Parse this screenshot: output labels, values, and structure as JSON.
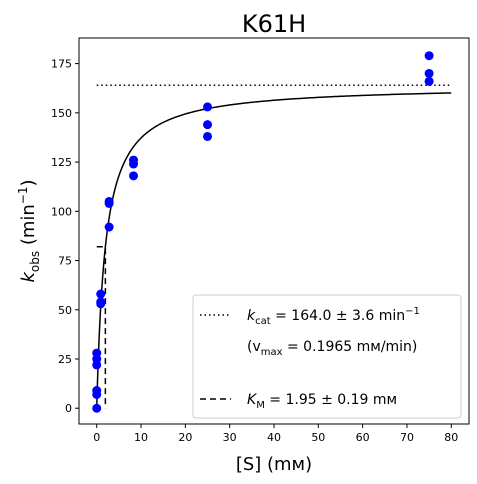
{
  "chart_data": {
    "type": "scatter",
    "title": "K61H",
    "xlabel": "[S] (mм)",
    "ylabel": "k_obs (min⁻¹)",
    "xlim": [
      -4,
      84
    ],
    "ylim": [
      -8,
      188
    ],
    "x_ticks": [
      0,
      10,
      20,
      30,
      40,
      50,
      60,
      70,
      80
    ],
    "y_ticks": [
      0,
      25,
      50,
      75,
      100,
      125,
      150,
      175
    ],
    "grid": false,
    "legend_position": "bottom-right",
    "marker_color": "#0000ff",
    "line_color": "#000000",
    "points": [
      {
        "x": 0,
        "y": 0
      },
      {
        "x": 0,
        "y": 7
      },
      {
        "x": 0,
        "y": 9
      },
      {
        "x": 0,
        "y": 22
      },
      {
        "x": 0,
        "y": 25
      },
      {
        "x": 0,
        "y": 28
      },
      {
        "x": 0.9,
        "y": 53
      },
      {
        "x": 0.9,
        "y": 54
      },
      {
        "x": 0.9,
        "y": 58
      },
      {
        "x": 2.8,
        "y": 92
      },
      {
        "x": 2.8,
        "y": 104
      },
      {
        "x": 2.8,
        "y": 105
      },
      {
        "x": 8.3,
        "y": 118
      },
      {
        "x": 8.3,
        "y": 124
      },
      {
        "x": 8.3,
        "y": 126
      },
      {
        "x": 25,
        "y": 138
      },
      {
        "x": 25,
        "y": 144
      },
      {
        "x": 25,
        "y": 153
      },
      {
        "x": 75,
        "y": 166
      },
      {
        "x": 75,
        "y": 170
      },
      {
        "x": 75,
        "y": 179
      }
    ],
    "fit": {
      "vmax": 164.0,
      "km": 1.95,
      "x_range": [
        0,
        80
      ]
    },
    "kcat_line": {
      "y": 164.0,
      "x_range": [
        0,
        80
      ]
    },
    "km_marker": {
      "x": 1.95,
      "y": 82.0
    },
    "legend": {
      "kcat_prefix": "k",
      "kcat_sub": "cat",
      "kcat_value": " = 164.0 ± 3.6 min",
      "kcat_sup": "−1",
      "vmax_open": "(v",
      "vmax_sub": "max",
      "vmax_value": " = 0.1965 mм/min)",
      "km_prefix": "K",
      "km_sub": "M",
      "km_value": " = 1.95 ± 0.19 mм"
    }
  },
  "labels": {
    "title": "K61H",
    "xlabel": "[S] (mм)",
    "ylabel_k": "k",
    "ylabel_sub": "obs",
    "ylabel_rest": " (min",
    "ylabel_sup": "−1",
    "ylabel_close": ")"
  }
}
